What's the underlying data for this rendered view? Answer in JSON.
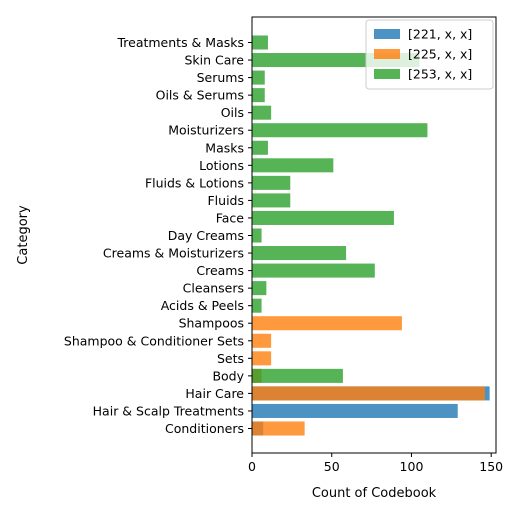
{
  "chart_data": {
    "type": "bar",
    "orientation": "horizontal",
    "title": "",
    "xlabel": "Count of Codebook",
    "ylabel": "Category",
    "xlim": [
      0,
      153
    ],
    "xticks": [
      0,
      50,
      100,
      150
    ],
    "grid": false,
    "legend_position": "top-right",
    "categories": [
      "Conditioners",
      "Hair & Scalp Treatments",
      "Hair Care",
      "Body",
      "Sets",
      "Shampoo & Conditioner Sets",
      "Shampoos",
      "Acids & Peels",
      "Cleansers",
      "Creams",
      "Creams & Moisturizers",
      "Day Creams",
      "Face",
      "Fluids",
      "Fluids & Lotions",
      "Lotions",
      "Masks",
      "Moisturizers",
      "Oils",
      "Oils & Serums",
      "Serums",
      "Skin Care",
      "Treatments & Masks"
    ],
    "series": [
      {
        "name": "[221, x, x]",
        "color": "#1f77b4",
        "values": [
          7,
          129,
          149,
          0,
          0,
          0,
          0,
          0,
          0,
          0,
          0,
          0,
          0,
          0,
          0,
          0,
          0,
          0,
          0,
          0,
          0,
          0,
          0
        ]
      },
      {
        "name": "[225, x, x]",
        "color": "#ff7f0e",
        "values": [
          33,
          0,
          146,
          6,
          12,
          12,
          94,
          0,
          0,
          0,
          0,
          0,
          0,
          0,
          0,
          0,
          0,
          0,
          0,
          0,
          0,
          0,
          0
        ]
      },
      {
        "name": "[253, x, x]",
        "color": "#2ca02c",
        "values": [
          0,
          0,
          0,
          57,
          0,
          0,
          0,
          6,
          9,
          77,
          59,
          6,
          89,
          24,
          24,
          51,
          10,
          110,
          12,
          8,
          8,
          105,
          10
        ]
      }
    ]
  }
}
